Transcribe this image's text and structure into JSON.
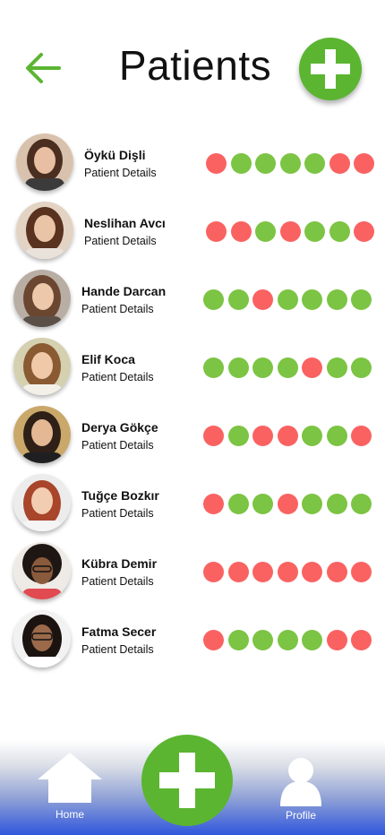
{
  "header": {
    "title": "Patients",
    "back_icon": "arrow-left-icon",
    "add_icon": "plus-icon"
  },
  "colors": {
    "accent_green": "#5bb531",
    "status_green": "#7cc443",
    "status_red": "#fa6262",
    "nav_blue": "#2f56dc"
  },
  "patients": [
    {
      "name": "Öykü Dişli",
      "details_label": "Patient Details",
      "status": [
        "red",
        "green",
        "green",
        "green",
        "green",
        "red",
        "red"
      ]
    },
    {
      "name": "Neslihan Avcı",
      "details_label": "Patient Details",
      "status": [
        "red",
        "red",
        "green",
        "red",
        "green",
        "green",
        "red"
      ]
    },
    {
      "name": "Hande Darcan",
      "details_label": "Patient Details",
      "status": [
        "green",
        "green",
        "red",
        "green",
        "green",
        "green",
        "green"
      ]
    },
    {
      "name": "Elif Koca",
      "details_label": "Patient Details",
      "status": [
        "green",
        "green",
        "green",
        "green",
        "red",
        "green",
        "green"
      ]
    },
    {
      "name": "Derya Gökçe",
      "details_label": "Patient Details",
      "status": [
        "red",
        "green",
        "red",
        "red",
        "green",
        "green",
        "red"
      ]
    },
    {
      "name": "Tuğçe Bozkır",
      "details_label": "Patient Details",
      "status": [
        "red",
        "green",
        "green",
        "red",
        "green",
        "green",
        "green"
      ]
    },
    {
      "name": "Kübra Demir",
      "details_label": "Patient Details",
      "status": [
        "red",
        "red",
        "red",
        "red",
        "red",
        "red",
        "red"
      ]
    },
    {
      "name": "Fatma Secer",
      "details_label": "Patient Details",
      "status": [
        "red",
        "green",
        "green",
        "green",
        "green",
        "red",
        "red"
      ]
    }
  ],
  "bottom_nav": {
    "home_label": "Home",
    "profile_label": "Profile",
    "home_icon": "house-icon",
    "add_icon": "plus-icon",
    "profile_icon": "user-icon"
  }
}
